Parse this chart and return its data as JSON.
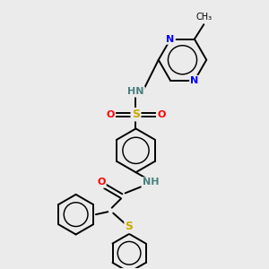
{
  "bg_color": "#ebebeb",
  "atom_colors": {
    "N": "#0000ff",
    "O": "#ff0000",
    "S": "#ccaa00",
    "HN": "#4a8080",
    "C": "#000000"
  },
  "bond_color": "#000000",
  "bond_width": 1.4
}
